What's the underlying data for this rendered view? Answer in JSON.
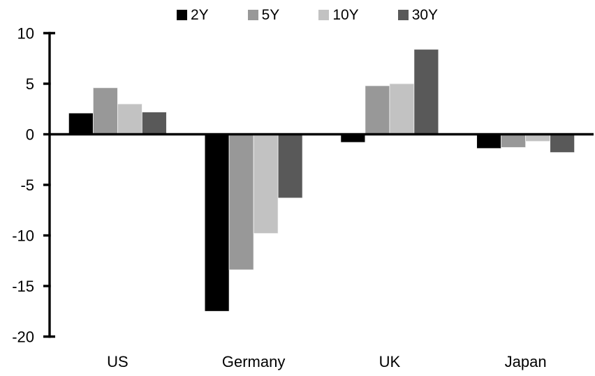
{
  "chart_data": {
    "type": "bar",
    "title": "",
    "xlabel": "",
    "ylabel": "",
    "categories": [
      "US",
      "Germany",
      "UK",
      "Japan"
    ],
    "series": [
      {
        "name": "2Y",
        "color": "#000000",
        "values": [
          2.1,
          -17.5,
          -0.8,
          -1.4
        ]
      },
      {
        "name": "5Y",
        "color": "#989898",
        "values": [
          4.6,
          -13.4,
          4.8,
          -1.3
        ]
      },
      {
        "name": "10Y",
        "color": "#c2c2c2",
        "values": [
          3.0,
          -9.8,
          5.0,
          -0.7
        ]
      },
      {
        "name": "30Y",
        "color": "#595959",
        "values": [
          2.2,
          -6.3,
          8.4,
          -1.8
        ]
      }
    ],
    "ylim": [
      -20,
      10
    ],
    "yticks": [
      10,
      5,
      0,
      -5,
      -10,
      -15,
      -20
    ],
    "grid": false,
    "legend_position": "top",
    "axis_color": "#000000",
    "background_color": "#ffffff"
  }
}
